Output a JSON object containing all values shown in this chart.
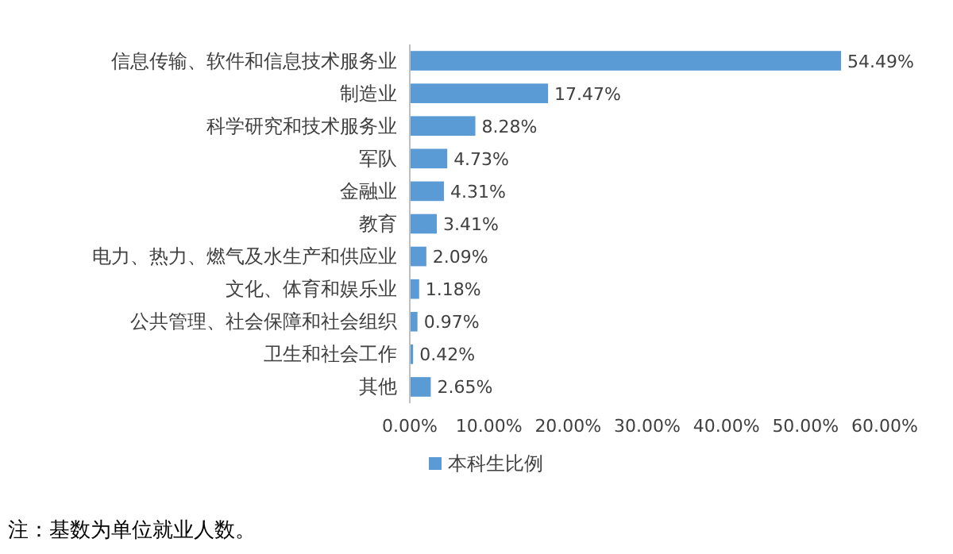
{
  "chart_data": {
    "type": "bar",
    "orientation": "horizontal",
    "categories": [
      "信息传输、软件和信息技术服务业",
      "制造业",
      "科学研究和技术服务业",
      "军队",
      "金融业",
      "教育",
      "电力、热力、燃气及水生产和供应业",
      "文化、体育和娱乐业",
      "公共管理、社会保障和社会组织",
      "卫生和社会工作",
      "其他"
    ],
    "series": [
      {
        "name": "本科生比例",
        "color": "#5b9bd5",
        "values": [
          54.49,
          17.47,
          8.28,
          4.73,
          4.31,
          3.41,
          2.09,
          1.18,
          0.97,
          0.42,
          2.65
        ],
        "value_labels": [
          "54.49%",
          "17.47%",
          "8.28%",
          "4.73%",
          "4.31%",
          "3.41%",
          "2.09%",
          "1.18%",
          "0.97%",
          "0.42%",
          "2.65%"
        ]
      }
    ],
    "xlim": [
      0,
      60
    ],
    "xticks": [
      {
        "value": 0,
        "label": "0.00%"
      },
      {
        "value": 10,
        "label": "10.00%"
      },
      {
        "value": 20,
        "label": "20.00%"
      },
      {
        "value": 30,
        "label": "30.00%"
      },
      {
        "value": 40,
        "label": "40.00%"
      },
      {
        "value": 50,
        "label": "50.00%"
      },
      {
        "value": 60,
        "label": "60.00%"
      }
    ],
    "legend": "bottom",
    "grid": false,
    "annotations": [
      "注：基数为单位就业人数。"
    ]
  }
}
